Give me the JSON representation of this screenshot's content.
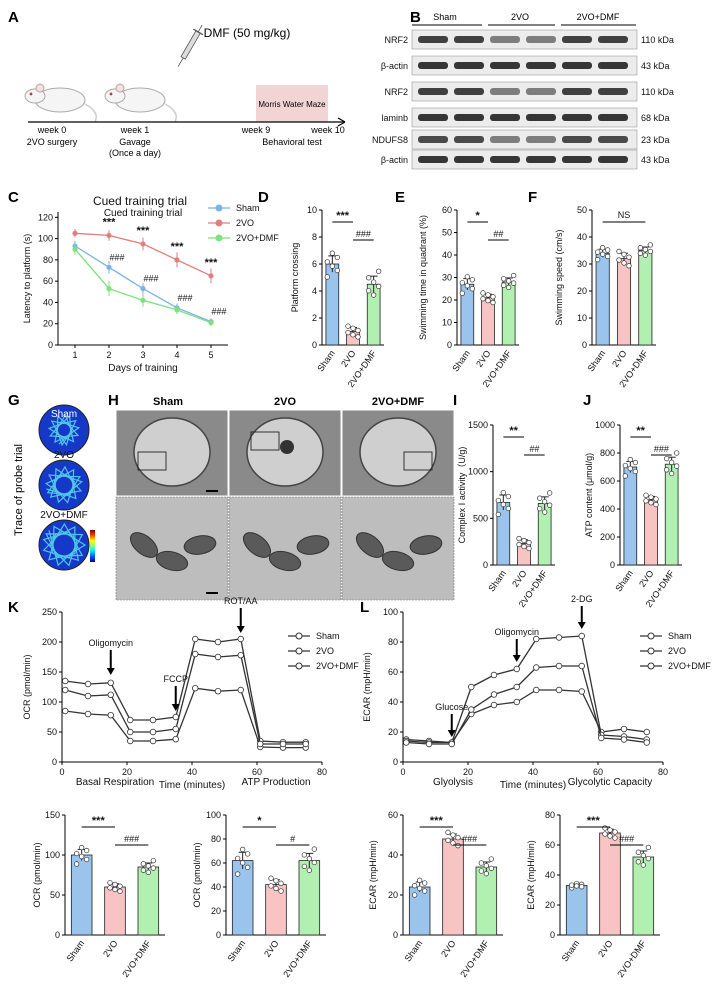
{
  "panel_letters": [
    "A",
    "B",
    "C",
    "D",
    "E",
    "F",
    "G",
    "H",
    "I",
    "J",
    "K",
    "L"
  ],
  "colors": {
    "sham": "#9ac4ec",
    "vo": "#f7c3c3",
    "dmf": "#b2f0b2",
    "sham_line": "#7bb3e6",
    "vo_line": "#e07f7f",
    "dmf_line": "#7ee07e",
    "maze_box": "#f2d4d4"
  },
  "panel_a": {
    "drug": "DMF (50 mg/kg)",
    "maze": "Morris Water Maze",
    "weeks": [
      "week 0",
      "week 1",
      "week 9",
      "week 10"
    ],
    "sub": [
      "2VO surgery",
      "Gavage",
      "(Once a day)",
      "Behavioral test"
    ]
  },
  "panel_b": {
    "groups": [
      "Sham",
      "2VO",
      "2VO+DMF"
    ],
    "bands": [
      {
        "name": "NRF2",
        "kda": "110 kDa"
      },
      {
        "name": "β-actin",
        "kda": "43 kDa"
      },
      {
        "name": "NRF2",
        "kda": "110 kDa"
      },
      {
        "name": "laminb",
        "kda": "68 kDa"
      },
      {
        "name": "NDUFS8",
        "kda": "23 kDa"
      },
      {
        "name": "β-actin",
        "kda": "43 kDa"
      }
    ]
  },
  "panel_g": {
    "ylabel": "Trace of probe trial",
    "labels": [
      "Sham",
      "2VO",
      "2VO+DMF"
    ]
  },
  "panel_h": {
    "labels": [
      "Sham",
      "2VO",
      "2VO+DMF"
    ]
  },
  "chart_data": [
    {
      "id": "C",
      "type": "line",
      "title": "Cued training trial",
      "xlabel": "Days of training",
      "ylabel": "Latency to platform (s)",
      "x": [
        1,
        2,
        3,
        4,
        5
      ],
      "ylim": [
        0,
        125
      ],
      "yticks": [
        0,
        20,
        40,
        60,
        80,
        100,
        120
      ],
      "series": [
        {
          "name": "Sham",
          "values": [
            93,
            73,
            53,
            35,
            22
          ],
          "err": [
            5,
            6,
            5,
            4,
            3
          ]
        },
        {
          "name": "2VO",
          "values": [
            105,
            103,
            95,
            80,
            65
          ],
          "err": [
            4,
            5,
            6,
            7,
            7
          ]
        },
        {
          "name": "2VO+DMF",
          "values": [
            90,
            53,
            42,
            33,
            21
          ],
          "err": [
            5,
            7,
            6,
            4,
            3
          ]
        }
      ],
      "annot_top": [
        "***",
        "***",
        "***",
        "***"
      ],
      "annot_bottom": [
        "###",
        "###",
        "###",
        "###"
      ],
      "legend": "top-right"
    },
    {
      "id": "D",
      "type": "bar",
      "ylabel": "Platform crossing",
      "categories": [
        "Sham",
        "2VO",
        "2VO+DMF"
      ],
      "values": [
        6,
        1,
        4.5
      ],
      "err": [
        0.6,
        0.3,
        0.6
      ],
      "ylim": [
        0,
        10
      ],
      "yticks": [
        0,
        2,
        4,
        6,
        8,
        10
      ],
      "sig": [
        "***",
        "###"
      ]
    },
    {
      "id": "E",
      "type": "bar",
      "ylabel": "Swimming time in quadrant (%)",
      "categories": [
        "Sham",
        "2VO",
        "2VO+DMF"
      ],
      "values": [
        27,
        21,
        28
      ],
      "err": [
        2.5,
        1.6,
        1.8
      ],
      "ylim": [
        0,
        60
      ],
      "yticks": [
        0,
        10,
        20,
        30,
        40,
        50,
        60
      ],
      "sig": [
        "*",
        "##"
      ]
    },
    {
      "id": "F",
      "type": "bar",
      "ylabel": "Swimming speed (cm/s)",
      "categories": [
        "Sham",
        "2VO",
        "2VO+DMF"
      ],
      "values": [
        34,
        32,
        35
      ],
      "err": [
        1.5,
        2,
        1.3
      ],
      "ylim": [
        0,
        50
      ],
      "yticks": [
        0,
        10,
        20,
        30,
        40,
        50
      ],
      "sig": [
        "NS"
      ]
    },
    {
      "id": "I",
      "type": "bar",
      "ylabel": "Complex Ⅰ activity（U/g)",
      "categories": [
        "Sham",
        "2VO",
        "2VO+DMF"
      ],
      "values": [
        670,
        230,
        660
      ],
      "err": [
        80,
        40,
        70
      ],
      "ylim": [
        0,
        1500
      ],
      "yticks": [
        0,
        500,
        1000,
        1500
      ],
      "sig": [
        "**",
        "##"
      ]
    },
    {
      "id": "J",
      "type": "bar",
      "ylabel": "ATP content (μmol/g)",
      "categories": [
        "Sham",
        "2VO",
        "2VO+DMF"
      ],
      "values": [
        700,
        465,
        720
      ],
      "err": [
        40,
        25,
        50
      ],
      "ylim": [
        0,
        1000
      ],
      "yticks": [
        0,
        200,
        400,
        600,
        800,
        1000
      ],
      "sig": [
        "**",
        "###"
      ]
    },
    {
      "id": "K",
      "type": "line",
      "xlabel": "Time (minutes)",
      "ylabel": "OCR (pmol/min)",
      "ylim": [
        0,
        250
      ],
      "yticks": [
        0,
        50,
        100,
        150,
        200,
        250
      ],
      "xlim": [
        0,
        80
      ],
      "xticks": [
        0,
        20,
        40,
        60,
        80
      ],
      "x": [
        1,
        8,
        15,
        21,
        28,
        35,
        41,
        48,
        55,
        61,
        68,
        75
      ],
      "series": [
        {
          "name": "Sham",
          "values": [
            135,
            130,
            132,
            70,
            70,
            75,
            205,
            200,
            205,
            35,
            33,
            33
          ]
        },
        {
          "name": "2VO",
          "values": [
            85,
            80,
            78,
            35,
            35,
            38,
            123,
            118,
            120,
            25,
            24,
            24
          ]
        },
        {
          "name": "2VO+DMF",
          "values": [
            120,
            110,
            112,
            50,
            50,
            55,
            180,
            175,
            178,
            30,
            30,
            30
          ]
        }
      ],
      "annot": [
        "Oligomycin",
        "FCCP",
        "ROT/AA"
      ],
      "legend": "top-right"
    },
    {
      "id": "L",
      "type": "line",
      "xlabel": "Time (minutes)",
      "ylabel": "ECAR (mpH/min)",
      "ylim": [
        0,
        100
      ],
      "yticks": [
        0,
        20,
        40,
        60,
        80,
        100
      ],
      "xlim": [
        0,
        80
      ],
      "xticks": [
        0,
        20,
        40,
        60,
        80
      ],
      "x": [
        1,
        8,
        15,
        21,
        28,
        35,
        41,
        48,
        55,
        61,
        68,
        75
      ],
      "series": [
        {
          "name": "Sham",
          "values": [
            15,
            14,
            13,
            32,
            38,
            40,
            48,
            48,
            47,
            20,
            22,
            20
          ]
        },
        {
          "name": "2VO",
          "values": [
            14,
            13,
            13,
            50,
            58,
            62,
            82,
            83,
            84,
            18,
            17,
            15
          ]
        },
        {
          "name": "2VO+DMF",
          "values": [
            13,
            12,
            12,
            35,
            45,
            50,
            63,
            64,
            64,
            16,
            15,
            13
          ]
        }
      ],
      "annot": [
        "Glucose",
        "Oligomycin",
        "2-DG"
      ],
      "legend": "top-right"
    },
    {
      "id": "K1",
      "type": "bar",
      "title": "Basal Respiration",
      "ylabel": "OCR (pmol/min)",
      "categories": [
        "Sham",
        "2VO",
        "2VO+DMF"
      ],
      "values": [
        100,
        60,
        85
      ],
      "err": [
        7,
        4,
        5
      ],
      "ylim": [
        0,
        150
      ],
      "yticks": [
        0,
        50,
        100,
        150
      ],
      "sig": [
        "***",
        "###"
      ]
    },
    {
      "id": "K2",
      "type": "bar",
      "title": "ATP Production",
      "ylabel": "OCR (pmol/min)",
      "categories": [
        "Sham",
        "2VO",
        "2VO+DMF"
      ],
      "values": [
        62,
        42,
        62
      ],
      "err": [
        7,
        4,
        6
      ],
      "ylim": [
        0,
        100
      ],
      "yticks": [
        0,
        20,
        40,
        60,
        80,
        100
      ],
      "sig": [
        "*",
        "#"
      ]
    },
    {
      "id": "L1",
      "type": "bar",
      "title": "Glyolysis",
      "ylabel": "ECAR (mpH/min)",
      "categories": [
        "Sham",
        "2VO",
        "2VO+DMF"
      ],
      "values": [
        24,
        48,
        34
      ],
      "err": [
        2.5,
        2.5,
        2.5
      ],
      "ylim": [
        0,
        60
      ],
      "yticks": [
        0,
        20,
        40,
        60
      ],
      "sig": [
        "***",
        "###"
      ]
    },
    {
      "id": "L2",
      "type": "bar",
      "title": "Glycolytic Capacity",
      "ylabel": "ECAR (mpH/min)",
      "categories": [
        "Sham",
        "2VO",
        "2VO+DMF"
      ],
      "values": [
        33,
        68,
        52
      ],
      "err": [
        1,
        2.5,
        4
      ],
      "ylim": [
        0,
        80
      ],
      "yticks": [
        0,
        20,
        40,
        60,
        80
      ],
      "sig": [
        "***",
        "###"
      ]
    }
  ]
}
